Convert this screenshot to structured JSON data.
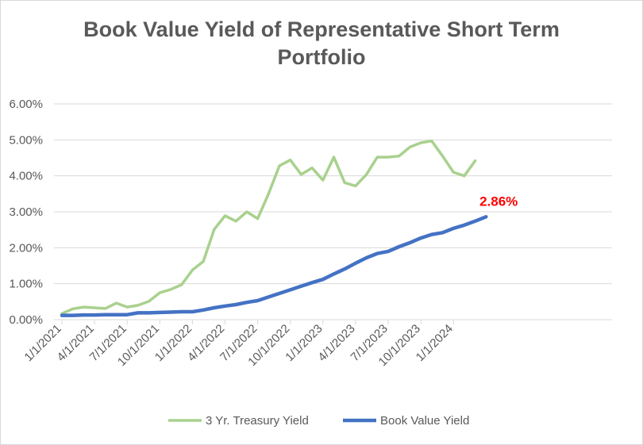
{
  "chart_data": {
    "type": "line",
    "title": "Book Value Yield of Representative Short Term Portfolio",
    "title_lines": [
      "Book Value Yield of Representative Short Term",
      "Portfolio"
    ],
    "xlabel": "",
    "ylabel": "",
    "ylim": [
      0,
      6
    ],
    "yticks": [
      {
        "value": 0,
        "label": "0.00%"
      },
      {
        "value": 1,
        "label": "1.00%"
      },
      {
        "value": 2,
        "label": "2.00%"
      },
      {
        "value": 3,
        "label": "3.00%"
      },
      {
        "value": 4,
        "label": "4.00%"
      },
      {
        "value": 5,
        "label": "5.00%"
      },
      {
        "value": 6,
        "label": "6.00%"
      }
    ],
    "x": [
      "2021-01",
      "2021-02",
      "2021-03",
      "2021-04",
      "2021-05",
      "2021-06",
      "2021-07",
      "2021-08",
      "2021-09",
      "2021-10",
      "2021-11",
      "2021-12",
      "2022-01",
      "2022-02",
      "2022-03",
      "2022-04",
      "2022-05",
      "2022-06",
      "2022-07",
      "2022-08",
      "2022-09",
      "2022-10",
      "2022-11",
      "2022-12",
      "2023-01",
      "2023-02",
      "2023-03",
      "2023-04",
      "2023-05",
      "2023-06",
      "2023-07",
      "2023-08",
      "2023-09",
      "2023-10",
      "2023-11",
      "2023-12",
      "2024-01",
      "2024-02",
      "2024-03",
      "2024-04"
    ],
    "xticks": [
      {
        "value": "2021-01",
        "label": "1/1/2021"
      },
      {
        "value": "2021-04",
        "label": "4/1/2021"
      },
      {
        "value": "2021-07",
        "label": "7/1/2021"
      },
      {
        "value": "2021-10",
        "label": "10/1/2021"
      },
      {
        "value": "2022-01",
        "label": "1/1/2022"
      },
      {
        "value": "2022-04",
        "label": "4/1/2022"
      },
      {
        "value": "2022-07",
        "label": "7/1/2022"
      },
      {
        "value": "2022-10",
        "label": "10/1/2022"
      },
      {
        "value": "2023-01",
        "label": "1/1/2023"
      },
      {
        "value": "2023-04",
        "label": "4/1/2023"
      },
      {
        "value": "2023-07",
        "label": "7/1/2023"
      },
      {
        "value": "2023-10",
        "label": "10/1/2023"
      },
      {
        "value": "2024-01",
        "label": "1/1/2024"
      }
    ],
    "series": [
      {
        "name": "3 Yr. Treasury Yield",
        "color": "#a9d18e",
        "values": [
          0.17,
          0.3,
          0.35,
          0.33,
          0.31,
          0.46,
          0.35,
          0.4,
          0.51,
          0.75,
          0.84,
          0.97,
          1.38,
          1.62,
          2.51,
          2.89,
          2.74,
          3.0,
          2.81,
          3.5,
          4.28,
          4.44,
          4.04,
          4.22,
          3.88,
          4.52,
          3.81,
          3.72,
          4.04,
          4.52,
          4.52,
          4.55,
          4.8,
          4.92,
          4.97,
          4.55,
          4.1,
          4.0,
          4.42,
          null
        ]
      },
      {
        "name": "Book Value Yield",
        "color": "#4472c4",
        "values": [
          0.12,
          0.12,
          0.13,
          0.13,
          0.14,
          0.14,
          0.14,
          0.19,
          0.19,
          0.2,
          0.21,
          0.22,
          0.22,
          0.27,
          0.33,
          0.38,
          0.42,
          0.48,
          0.53,
          0.63,
          0.73,
          0.83,
          0.93,
          1.03,
          1.12,
          1.27,
          1.41,
          1.57,
          1.72,
          1.84,
          1.9,
          2.03,
          2.14,
          2.27,
          2.37,
          2.42,
          2.54,
          2.63,
          2.74,
          2.86
        ]
      }
    ],
    "annotation": {
      "text": "2.86%",
      "color": "#ff0000",
      "series": "Book Value Yield",
      "x": "2024-04"
    },
    "grid": true,
    "legend": "bottom"
  }
}
